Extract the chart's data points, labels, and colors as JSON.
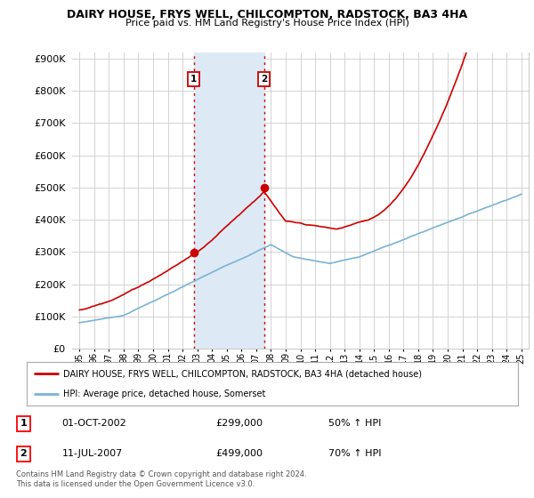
{
  "title": "DAIRY HOUSE, FRYS WELL, CHILCOMPTON, RADSTOCK, BA3 4HA",
  "subtitle": "Price paid vs. HM Land Registry's House Price Index (HPI)",
  "ylabel_ticks": [
    0,
    100000,
    200000,
    300000,
    400000,
    500000,
    600000,
    700000,
    800000,
    900000
  ],
  "ylim": [
    0,
    920000
  ],
  "xlim_start": 1994.5,
  "xlim_end": 2025.5,
  "sale1": {
    "date_num": 2002.75,
    "price": 299000,
    "label": "1"
  },
  "sale2": {
    "date_num": 2007.53,
    "price": 499000,
    "label": "2"
  },
  "hpi_color": "#7ab3d4",
  "price_color": "#cc0000",
  "shaded_color": "#ddeaf5",
  "legend_line1": "DAIRY HOUSE, FRYS WELL, CHILCOMPTON, RADSTOCK, BA3 4HA (detached house)",
  "legend_line2": "HPI: Average price, detached house, Somerset",
  "table_row1": [
    "1",
    "01-OCT-2002",
    "£299,000",
    "50% ↑ HPI"
  ],
  "table_row2": [
    "2",
    "11-JUL-2007",
    "£499,000",
    "70% ↑ HPI"
  ],
  "footnote": "Contains HM Land Registry data © Crown copyright and database right 2024.\nThis data is licensed under the Open Government Licence v3.0.",
  "background_color": "#ffffff"
}
